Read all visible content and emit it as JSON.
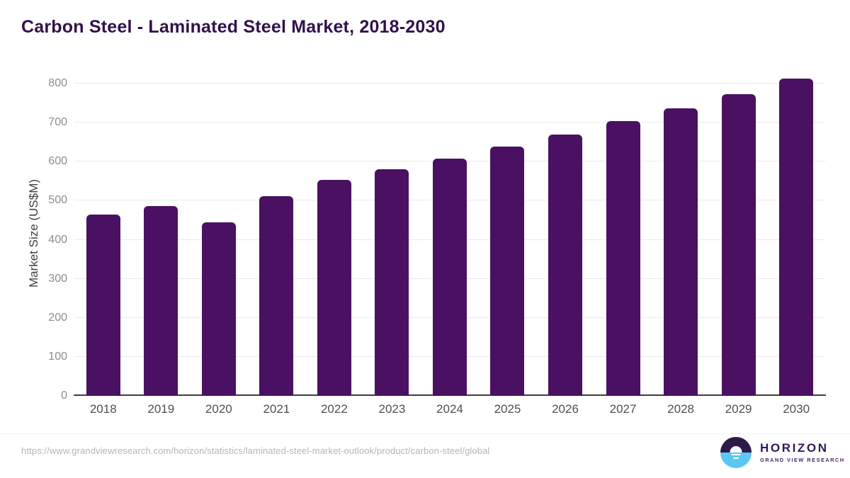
{
  "page": {
    "title": "Carbon Steel - Laminated Steel Market, 2018-2030"
  },
  "chart_data": {
    "type": "bar",
    "title": "Carbon Steel - Laminated Steel Market, 2018-2030",
    "categories": [
      "2018",
      "2019",
      "2020",
      "2021",
      "2022",
      "2023",
      "2024",
      "2025",
      "2026",
      "2027",
      "2028",
      "2029",
      "2030"
    ],
    "values": [
      465,
      487,
      444,
      511,
      553,
      581,
      608,
      638,
      670,
      703,
      737,
      773,
      812
    ],
    "xlabel": "",
    "ylabel": "Market Size (US$M)",
    "ylim": [
      0,
      800
    ],
    "ytick_step": 100,
    "grid": true,
    "legend": false,
    "bar_color": "#4A1162"
  },
  "footer": {
    "source_url": "https://www.grandviewresearch.com/horizon/statistics/laminated-steel-market-outlook/product/carbon-steel/global",
    "logo": {
      "brand": "HORIZON",
      "tagline": "GRAND VIEW RESEARCH",
      "icon": "sunset-over-water-icon",
      "icon_top_color": "#2E1A47",
      "icon_bottom_color": "#5BC7F3"
    }
  },
  "colors": {
    "title": "#31114C",
    "bar": "#4A1162",
    "y_tick": "#8C8C8C",
    "x_tick": "#4F4F4F",
    "axis_label": "#404040",
    "gridline": "#EAEAEA",
    "axis_line": "#3D3D3D",
    "url_text": "#B5B5B5"
  }
}
